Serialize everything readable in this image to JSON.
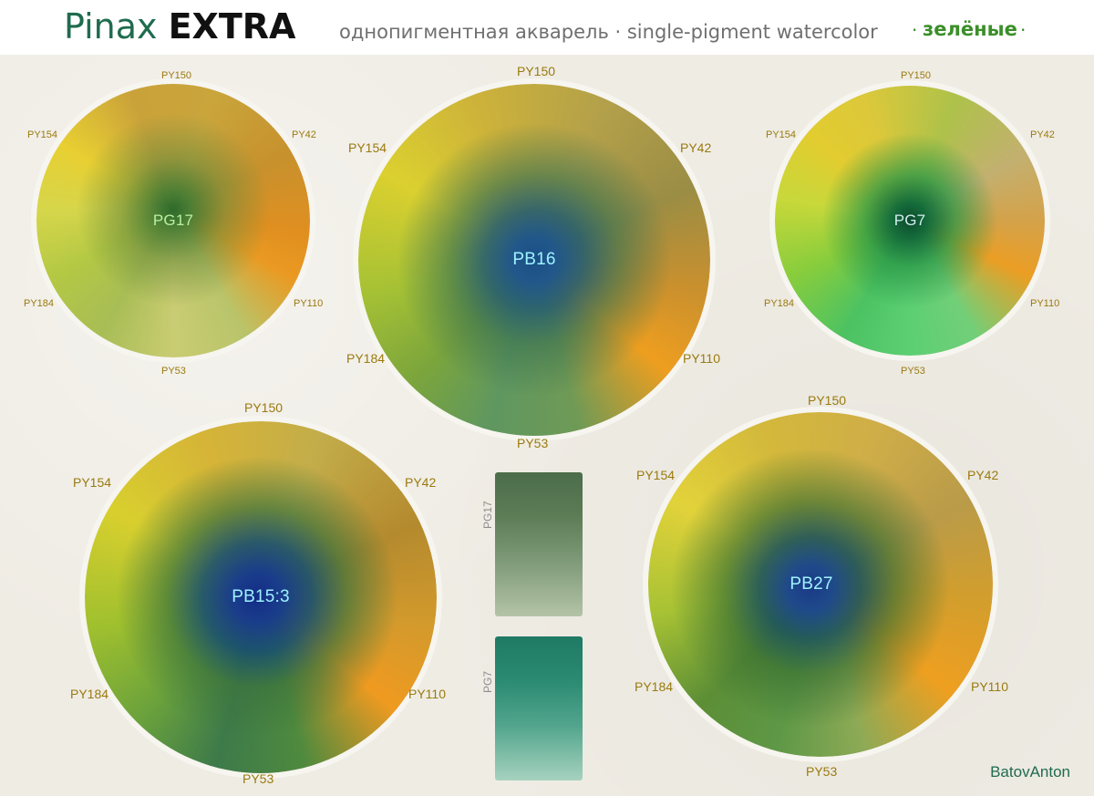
{
  "header": {
    "brand_plain": "Pinax",
    "brand_bold": "EXTRA",
    "subtitle": "однопигментная акварель · single-pigment watercolor",
    "separator": "·",
    "category": "зелёные",
    "colors": {
      "brand": "#1f6b4f",
      "category": "#3b8f2a"
    }
  },
  "wheels": [
    {
      "center": "PG17",
      "top": "PY150",
      "upper_left": "PY154",
      "upper_right": "PY42",
      "lower_left": "PY184",
      "lower_right": "PY110",
      "bottom": "PY53"
    },
    {
      "center": "PB16",
      "top": "PY150",
      "upper_left": "PY154",
      "upper_right": "PY42",
      "lower_left": "PY184",
      "lower_right": "PY110",
      "bottom": "PY53"
    },
    {
      "center": "PG7",
      "top": "PY150",
      "upper_left": "PY154",
      "upper_right": "PY42",
      "lower_left": "PY184",
      "lower_right": "PY110",
      "bottom": "PY53"
    },
    {
      "center": "PB15:3",
      "top": "PY150",
      "upper_left": "PY154",
      "upper_right": "PY42",
      "lower_left": "PY184",
      "lower_right": "PY110",
      "bottom": "PY53"
    },
    {
      "center": "PB27",
      "top": "PY150",
      "upper_left": "PY154",
      "upper_right": "PY42",
      "lower_left": "PY184",
      "lower_right": "PY110",
      "bottom": "PY53"
    }
  ],
  "swatches": [
    {
      "code": "PG17"
    },
    {
      "code": "PG7"
    }
  ],
  "credit": "BatovAnton"
}
